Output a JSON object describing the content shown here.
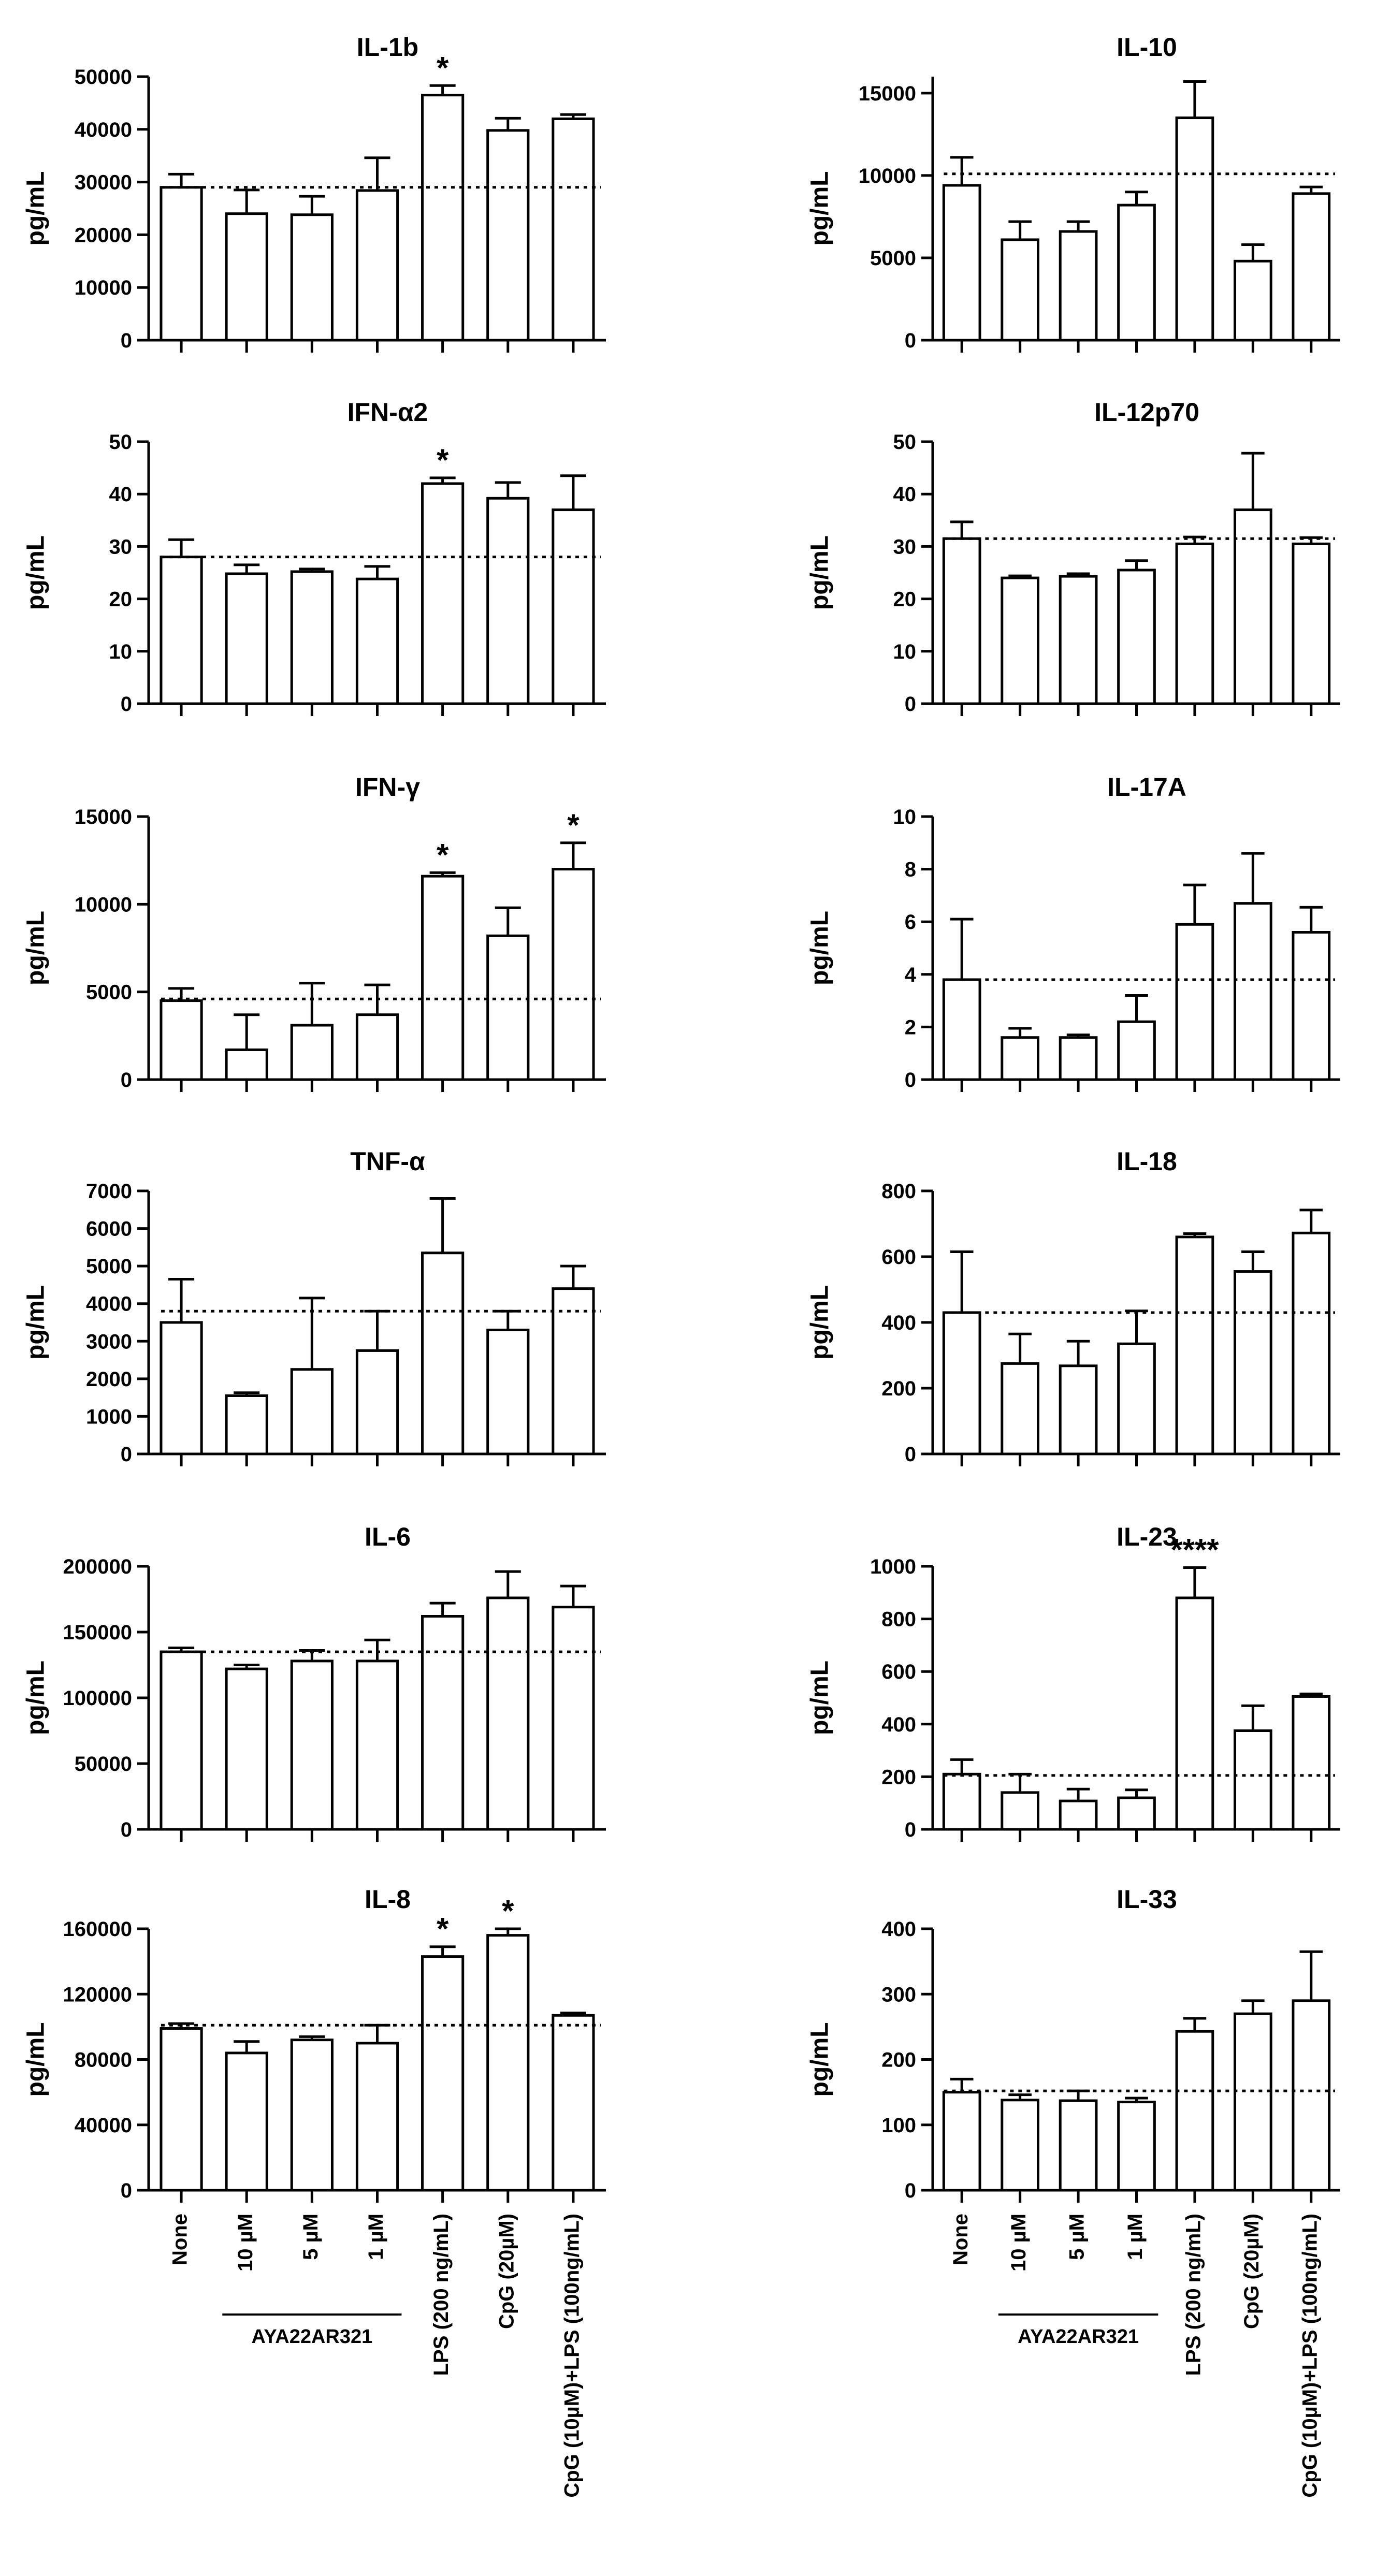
{
  "figure": {
    "categories": [
      "None",
      "10 µM",
      "5 µM",
      "1 µM",
      "LPS (200 ng/mL)",
      "CpG (20µM)",
      "CpG (10µM)+LPS (100ng/mL)"
    ],
    "group_label": "AYA22AR321",
    "ylabel": "pg/mL",
    "bar_fill": "#ffffff",
    "stroke_color": "#000000"
  },
  "chart_data": [
    {
      "type": "bar",
      "title": "IL-1b",
      "ylabel": "pg/mL",
      "ylim": [
        0,
        50000
      ],
      "ticks": [
        0,
        10000,
        20000,
        30000,
        40000,
        50000
      ],
      "tick_labels": [
        "0",
        "10000",
        "20000",
        "30000",
        "40000",
        "50000"
      ],
      "values": [
        29000,
        24000,
        23800,
        28400,
        46500,
        39800,
        42000
      ],
      "errors": [
        2500,
        4500,
        3500,
        6200,
        1800,
        2300,
        800
      ],
      "baseline": 29000,
      "stars": [
        "",
        "",
        "",
        "",
        "*",
        "",
        ""
      ]
    },
    {
      "type": "bar",
      "title": "IL-10",
      "ylabel": "pg/mL",
      "ylim": [
        0,
        16000
      ],
      "ticks": [
        0,
        5000,
        10000,
        15000
      ],
      "tick_labels": [
        "0",
        "5000",
        "10000",
        "15000"
      ],
      "values": [
        9400,
        6100,
        6600,
        8200,
        13500,
        4800,
        8900
      ],
      "errors": [
        1700,
        1100,
        600,
        800,
        2200,
        1000,
        400
      ],
      "baseline": 10100,
      "stars": [
        "",
        "",
        "",
        "",
        "",
        "",
        ""
      ]
    },
    {
      "type": "bar",
      "title": "IFN-α2",
      "ylabel": "pg/mL",
      "ylim": [
        0,
        50
      ],
      "ticks": [
        0,
        10,
        20,
        30,
        40,
        50
      ],
      "tick_labels": [
        "0",
        "10",
        "20",
        "30",
        "40",
        "50"
      ],
      "values": [
        28,
        24.8,
        25.2,
        23.8,
        42,
        39.2,
        37
      ],
      "errors": [
        3.3,
        1.7,
        0.5,
        2.4,
        1.1,
        3,
        6.5
      ],
      "baseline": 28,
      "stars": [
        "",
        "",
        "",
        "",
        "*",
        "",
        ""
      ]
    },
    {
      "type": "bar",
      "title": "IL-12p70",
      "ylabel": "pg/mL",
      "ylim": [
        0,
        50
      ],
      "ticks": [
        0,
        10,
        20,
        30,
        40,
        50
      ],
      "tick_labels": [
        "0",
        "10",
        "20",
        "30",
        "40",
        "50"
      ],
      "values": [
        31.5,
        24,
        24.3,
        25.5,
        30.5,
        37,
        30.5
      ],
      "errors": [
        3.2,
        0.4,
        0.5,
        1.8,
        1.3,
        10.8,
        1.2
      ],
      "baseline": 31.5,
      "stars": [
        "",
        "",
        "",
        "",
        "",
        "",
        ""
      ]
    },
    {
      "type": "bar",
      "title": "IFN-γ",
      "ylabel": "pg/mL",
      "ylim": [
        0,
        15000
      ],
      "ticks": [
        0,
        5000,
        10000,
        15000
      ],
      "tick_labels": [
        "0",
        "5000",
        "10000",
        "15000"
      ],
      "values": [
        4500,
        1700,
        3100,
        3700,
        11600,
        8200,
        12000
      ],
      "errors": [
        700,
        2000,
        2400,
        1700,
        200,
        1600,
        1500
      ],
      "baseline": 4600,
      "stars": [
        "",
        "",
        "",
        "",
        "*",
        "",
        "*"
      ]
    },
    {
      "type": "bar",
      "title": "IL-17A",
      "ylabel": "pg/mL",
      "ylim": [
        0,
        10
      ],
      "ticks": [
        0,
        2,
        4,
        6,
        8,
        10
      ],
      "tick_labels": [
        "0",
        "2",
        "4",
        "6",
        "8",
        "10"
      ],
      "values": [
        3.8,
        1.6,
        1.6,
        2.2,
        5.9,
        6.7,
        5.6
      ],
      "errors": [
        2.3,
        0.35,
        0.1,
        1,
        1.5,
        1.9,
        0.95
      ],
      "baseline": 3.8,
      "stars": [
        "",
        "",
        "",
        "",
        "",
        "",
        ""
      ]
    },
    {
      "type": "bar",
      "title": "TNF-α",
      "ylabel": "pg/mL",
      "ylim": [
        0,
        7000
      ],
      "ticks": [
        0,
        1000,
        2000,
        3000,
        4000,
        5000,
        6000,
        7000
      ],
      "tick_labels": [
        "0",
        "1000",
        "2000",
        "3000",
        "4000",
        "5000",
        "6000",
        "7000"
      ],
      "values": [
        3500,
        1550,
        2250,
        2750,
        5350,
        3300,
        4400
      ],
      "errors": [
        1150,
        80,
        1900,
        1050,
        1450,
        500,
        600
      ],
      "baseline": 3800,
      "stars": [
        "",
        "",
        "",
        "",
        "",
        "",
        ""
      ]
    },
    {
      "type": "bar",
      "title": "IL-18",
      "ylabel": "pg/mL",
      "ylim": [
        0,
        800
      ],
      "ticks": [
        0,
        200,
        400,
        600,
        800
      ],
      "tick_labels": [
        "0",
        "200",
        "400",
        "600",
        "800"
      ],
      "values": [
        430,
        275,
        268,
        335,
        660,
        555,
        672
      ],
      "errors": [
        185,
        90,
        75,
        100,
        10,
        60,
        70
      ],
      "baseline": 430,
      "stars": [
        "",
        "",
        "",
        "",
        "",
        "",
        ""
      ]
    },
    {
      "type": "bar",
      "title": "IL-6",
      "ylabel": "pg/mL",
      "ylim": [
        0,
        200000
      ],
      "ticks": [
        0,
        50000,
        100000,
        150000,
        200000
      ],
      "tick_labels": [
        "0",
        "50000",
        "100000",
        "150000",
        "200000"
      ],
      "values": [
        135000,
        122000,
        128000,
        128000,
        162000,
        176000,
        169000
      ],
      "errors": [
        3000,
        3000,
        8000,
        16000,
        10000,
        20000,
        16000
      ],
      "baseline": 135000,
      "stars": [
        "",
        "",
        "",
        "",
        "",
        "",
        ""
      ]
    },
    {
      "type": "bar",
      "title": "IL-23",
      "ylabel": "pg/mL",
      "ylim": [
        0,
        1000
      ],
      "ticks": [
        0,
        200,
        400,
        600,
        800,
        1000
      ],
      "tick_labels": [
        "0",
        "200",
        "400",
        "600",
        "800",
        "1000"
      ],
      "values": [
        210,
        140,
        108,
        120,
        880,
        375,
        505
      ],
      "errors": [
        55,
        70,
        45,
        30,
        115,
        95,
        10
      ],
      "baseline": 205,
      "stars": [
        "",
        "",
        "",
        "",
        "****",
        "",
        ""
      ]
    },
    {
      "type": "bar",
      "title": "IL-8",
      "ylabel": "pg/mL",
      "ylim": [
        0,
        160000
      ],
      "ticks": [
        0,
        40000,
        80000,
        120000,
        160000
      ],
      "tick_labels": [
        "0",
        "40000",
        "80000",
        "120000",
        "160000"
      ],
      "values": [
        99000,
        84000,
        92000,
        90000,
        143000,
        156000,
        107000
      ],
      "errors": [
        3000,
        7000,
        2000,
        11000,
        6000,
        4000,
        1500
      ],
      "baseline": 101000,
      "stars": [
        "",
        "",
        "",
        "",
        "*",
        "*",
        ""
      ]
    },
    {
      "type": "bar",
      "title": "IL-33",
      "ylabel": "pg/mL",
      "ylim": [
        0,
        400
      ],
      "ticks": [
        0,
        100,
        200,
        300,
        400
      ],
      "tick_labels": [
        "0",
        "100",
        "200",
        "300",
        "400"
      ],
      "values": [
        150,
        138,
        137,
        135,
        243,
        270,
        290
      ],
      "errors": [
        20,
        8,
        15,
        6,
        20,
        20,
        75
      ],
      "baseline": 152,
      "stars": [
        "",
        "",
        "",
        "",
        "",
        "",
        ""
      ]
    }
  ]
}
